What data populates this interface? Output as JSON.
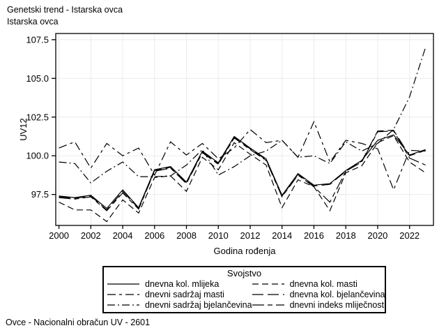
{
  "header": {
    "title_line1": "Genetski trend - Istarska ovca",
    "title_line2": "Istarska ovca"
  },
  "footer": {
    "source": "Ovce - Nacionalni obračun UV - 2601"
  },
  "chart_data": {
    "type": "line",
    "title": "Genetski trend - Istarska ovca",
    "subtitle": "Istarska ovca",
    "xlabel": "Godina rođenja",
    "ylabel": "UV12",
    "grid": true,
    "legend_title": "Svojstvo",
    "legend_position": "bottom",
    "line_color": "#000000",
    "grid_color": "#ebebeb",
    "xlim": [
      1999.8,
      2023.5
    ],
    "ylim": [
      95.5,
      107.9
    ],
    "x_ticks": [
      2000,
      2002,
      2004,
      2006,
      2008,
      2010,
      2012,
      2014,
      2016,
      2018,
      2020,
      2022
    ],
    "y_ticks": [
      97.5,
      100.0,
      102.5,
      105.0,
      107.5
    ],
    "x": [
      2000,
      2001,
      2002,
      2003,
      2004,
      2005,
      2006,
      2007,
      2008,
      2009,
      2010,
      2011,
      2012,
      2013,
      2014,
      2015,
      2016,
      2017,
      2018,
      2019,
      2020,
      2021,
      2022,
      2023
    ],
    "series": [
      {
        "name": "dnevna kol. mlijeka",
        "dash": "",
        "values": [
          97.4,
          97.3,
          97.45,
          96.6,
          97.8,
          96.65,
          99.1,
          99.3,
          98.3,
          100.3,
          99.55,
          101.25,
          100.5,
          99.8,
          97.45,
          98.85,
          98.1,
          98.2,
          99.05,
          99.7,
          101.0,
          101.35,
          100.05,
          100.4
        ]
      },
      {
        "name": "dnevna kol. masti",
        "dash": "9 5",
        "values": [
          97.0,
          96.5,
          96.5,
          95.75,
          97.15,
          96.3,
          98.6,
          98.7,
          97.7,
          99.9,
          99.1,
          100.85,
          100.1,
          99.4,
          96.65,
          98.45,
          98.0,
          96.45,
          98.9,
          99.35,
          100.85,
          101.3,
          99.6,
          98.9
        ]
      },
      {
        "name": "dnevni sadržaj masti",
        "dash": "12 5 4 5",
        "values": [
          100.5,
          100.9,
          99.2,
          100.8,
          100.0,
          100.5,
          98.75,
          100.9,
          100.05,
          100.8,
          99.8,
          100.5,
          101.7,
          100.85,
          101.0,
          99.9,
          102.2,
          99.6,
          101.0,
          100.8,
          100.45,
          97.8,
          100.35,
          100.3
        ]
      },
      {
        "name": "dnevna kol. bjelančevina",
        "dash": "16 6",
        "values": [
          97.35,
          97.25,
          97.4,
          96.5,
          97.7,
          96.6,
          99.05,
          99.25,
          98.25,
          100.25,
          99.5,
          101.2,
          100.45,
          99.75,
          97.4,
          98.8,
          98.05,
          98.15,
          99.0,
          99.65,
          101.6,
          101.65,
          100.0,
          100.35
        ]
      },
      {
        "name": "dnevni sadržaj bjelančevina",
        "dash": "11 4 2 4",
        "values": [
          99.6,
          99.5,
          98.25,
          99.0,
          99.6,
          98.65,
          98.65,
          98.7,
          99.4,
          100.4,
          98.75,
          99.3,
          100.0,
          100.3,
          101.0,
          99.9,
          100.0,
          99.5,
          100.9,
          100.3,
          100.8,
          101.7,
          103.8,
          107.0
        ]
      },
      {
        "name": "dnevni indeks mliječnosti",
        "dash": "17 5 7 5",
        "values": [
          97.3,
          97.2,
          97.35,
          96.45,
          97.6,
          96.55,
          99.0,
          99.2,
          98.2,
          100.2,
          99.45,
          101.15,
          100.4,
          99.7,
          97.35,
          98.75,
          98.0,
          97.0,
          99.0,
          99.6,
          101.55,
          101.6,
          99.85,
          99.4
        ]
      }
    ]
  }
}
